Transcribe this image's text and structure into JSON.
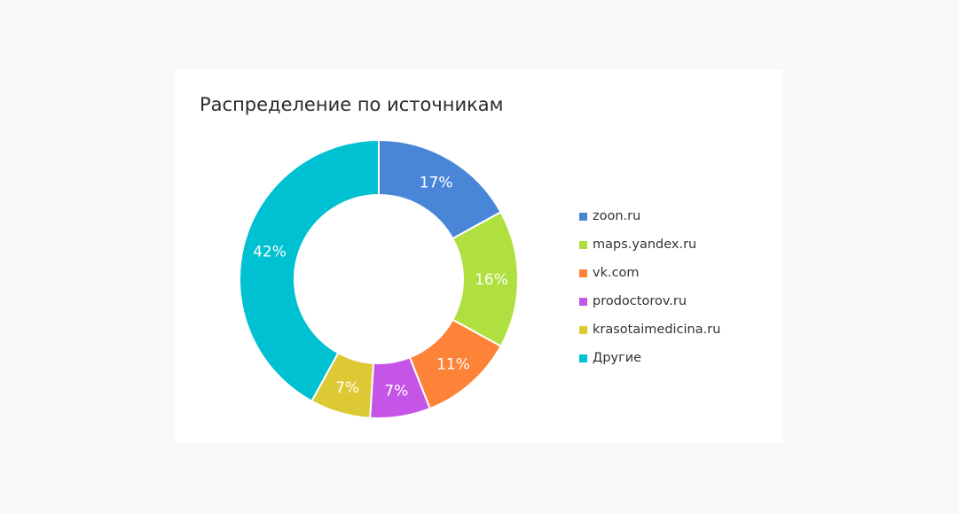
{
  "chart_data": {
    "type": "pie",
    "donut": true,
    "title": "Распределение по источникам",
    "categories": [
      "zoon.ru",
      "maps.yandex.ru",
      "vk.com",
      "prodoctorov.ru",
      "krasotaimedicina.ru",
      "Другие"
    ],
    "values": [
      17,
      16,
      11,
      7,
      7,
      42
    ],
    "labels": [
      "17%",
      "16%",
      "11%",
      "7%",
      "7%",
      "42%"
    ],
    "colors": [
      "#4a86d8",
      "#b0e040",
      "#fd8338",
      "#c555e6",
      "#dcc934",
      "#00c1d1"
    ],
    "legend_position": "right"
  }
}
